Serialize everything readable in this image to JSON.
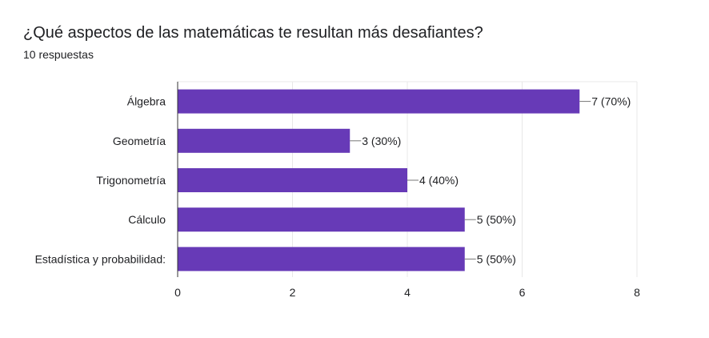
{
  "form": {
    "question": "¿Qué aspectos de las matemáticas te resultan más desafiantes?",
    "responses": "10 respuestas"
  },
  "chart_data": {
    "type": "bar",
    "orientation": "horizontal",
    "categories": [
      "Álgebra",
      "Geometría",
      "Trigonometría",
      "Cálculo",
      "Estadística y probabilidad:"
    ],
    "values": [
      7,
      3,
      4,
      5,
      5
    ],
    "data_labels": [
      "7 (70%)",
      "3 (30%)",
      "4 (40%)",
      "5 (50%)",
      "5 (50%)"
    ],
    "xlim": [
      0,
      8
    ],
    "xticks": [
      0,
      2,
      4,
      6,
      8
    ],
    "grid": true,
    "bar_color": "#673ab7"
  }
}
